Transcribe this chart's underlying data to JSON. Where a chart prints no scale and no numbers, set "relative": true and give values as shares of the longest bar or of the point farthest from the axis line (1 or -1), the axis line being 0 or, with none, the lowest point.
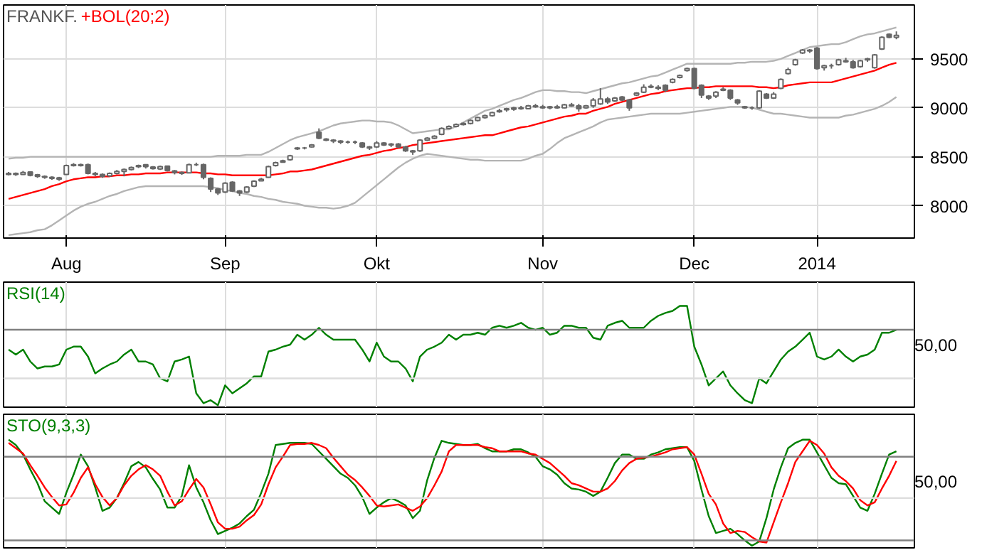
{
  "chart_data": [
    {
      "type": "candlestick",
      "title": "FRANKF.",
      "categories": [
        null,
        null,
        null,
        null,
        null,
        null,
        null,
        null,
        "Aug",
        null,
        null,
        null,
        null,
        null,
        null,
        null,
        null,
        null,
        null,
        null,
        null,
        null,
        null,
        null,
        null,
        null,
        null,
        null,
        null,
        null,
        "Sep",
        null,
        null,
        null,
        null,
        null,
        null,
        null,
        null,
        null,
        null,
        null,
        null,
        null,
        null,
        null,
        null,
        null,
        null,
        null,
        null,
        "Okt",
        null,
        null,
        null,
        null,
        null,
        null,
        null,
        null,
        null,
        null,
        null,
        null,
        null,
        null,
        null,
        null,
        null,
        null,
        null,
        null,
        null,
        null,
        "Nov",
        null,
        null,
        null,
        null,
        null,
        null,
        null,
        null,
        null,
        null,
        null,
        null,
        null,
        null,
        null,
        null,
        null,
        null,
        null,
        null,
        "Dec",
        null,
        null,
        null,
        null,
        null,
        null,
        null,
        null,
        null,
        null,
        null,
        null,
        null,
        null,
        null,
        null,
        "2014",
        null,
        null,
        null,
        null,
        null,
        null,
        null,
        null,
        null,
        null,
        null
      ],
      "ohlc": [
        [
          8320,
          8345,
          8310,
          8330
        ],
        [
          8330,
          8340,
          8305,
          8320
        ],
        [
          8320,
          8355,
          8315,
          8340
        ],
        [
          8345,
          8350,
          8300,
          8310
        ],
        [
          8315,
          8325,
          8285,
          8300
        ],
        [
          8300,
          8310,
          8275,
          8290
        ],
        [
          8290,
          8300,
          8265,
          8280
        ],
        [
          8285,
          8295,
          8255,
          8270
        ],
        [
          8320,
          8420,
          8315,
          8410
        ],
        [
          8410,
          8435,
          8400,
          8420
        ],
        [
          8420,
          8430,
          8400,
          8410
        ],
        [
          8420,
          8430,
          8320,
          8330
        ],
        [
          8330,
          8345,
          8300,
          8320
        ],
        [
          8320,
          8330,
          8285,
          8300
        ],
        [
          8305,
          8340,
          8295,
          8330
        ],
        [
          8330,
          8365,
          8320,
          8350
        ],
        [
          8350,
          8380,
          8300,
          8370
        ],
        [
          8370,
          8400,
          8360,
          8390
        ],
        [
          8400,
          8420,
          8385,
          8410
        ],
        [
          8420,
          8425,
          8380,
          8400
        ],
        [
          8395,
          8405,
          8370,
          8380
        ],
        [
          8375,
          8410,
          8365,
          8400
        ],
        [
          8405,
          8410,
          8350,
          8360
        ],
        [
          8355,
          8365,
          8320,
          8340
        ],
        [
          8340,
          8350,
          8315,
          8330
        ],
        [
          8335,
          8430,
          8330,
          8420
        ],
        [
          8420,
          8440,
          8405,
          8420
        ],
        [
          8420,
          8430,
          8270,
          8290
        ],
        [
          8280,
          8290,
          8140,
          8170
        ],
        [
          8170,
          8180,
          8110,
          8130
        ],
        [
          8140,
          8240,
          8130,
          8230
        ],
        [
          8240,
          8250,
          8140,
          8150
        ],
        [
          8150,
          8160,
          8100,
          8130
        ],
        [
          8140,
          8200,
          8130,
          8190
        ],
        [
          8200,
          8260,
          8190,
          8250
        ],
        [
          8255,
          8285,
          8250,
          8270
        ],
        [
          8290,
          8410,
          8285,
          8400
        ],
        [
          8410,
          8450,
          8400,
          8440
        ],
        [
          8445,
          8470,
          8440,
          8460
        ],
        [
          8470,
          8520,
          8460,
          8510
        ],
        [
          8580,
          8600,
          8570,
          8590
        ],
        [
          8590,
          8600,
          8575,
          8590
        ],
        [
          8600,
          8630,
          8595,
          8620
        ],
        [
          8750,
          8790,
          8680,
          8690
        ],
        [
          8680,
          8690,
          8660,
          8670
        ],
        [
          8670,
          8680,
          8640,
          8660
        ],
        [
          8660,
          8670,
          8630,
          8650
        ],
        [
          8650,
          8665,
          8635,
          8650
        ],
        [
          8650,
          8665,
          8630,
          8650
        ],
        [
          8640,
          8650,
          8590,
          8600
        ],
        [
          8600,
          8610,
          8570,
          8590
        ],
        [
          8600,
          8660,
          8590,
          8640
        ],
        [
          8640,
          8650,
          8610,
          8620
        ],
        [
          8620,
          8640,
          8600,
          8630
        ],
        [
          8630,
          8640,
          8590,
          8600
        ],
        [
          8600,
          8610,
          8550,
          8560
        ],
        [
          8560,
          8570,
          8520,
          8550
        ],
        [
          8560,
          8680,
          8550,
          8670
        ],
        [
          8670,
          8700,
          8660,
          8690
        ],
        [
          8690,
          8720,
          8680,
          8710
        ],
        [
          8730,
          8800,
          8720,
          8790
        ],
        [
          8790,
          8820,
          8780,
          8810
        ],
        [
          8810,
          8840,
          8800,
          8830
        ],
        [
          8830,
          8850,
          8820,
          8840
        ],
        [
          8840,
          8880,
          8830,
          8870
        ],
        [
          8870,
          8910,
          8860,
          8900
        ],
        [
          8900,
          8930,
          8890,
          8920
        ],
        [
          8920,
          8960,
          8910,
          8950
        ],
        [
          8960,
          8990,
          8950,
          8970
        ],
        [
          8980,
          9000,
          8960,
          8990
        ],
        [
          8985,
          9010,
          8970,
          9000
        ],
        [
          9000,
          9020,
          8980,
          8990
        ],
        [
          8990,
          9030,
          8985,
          9020
        ],
        [
          9020,
          9040,
          9000,
          9010
        ],
        [
          9010,
          9030,
          8990,
          9000
        ],
        [
          9000,
          9020,
          8985,
          9010
        ],
        [
          9010,
          9030,
          8990,
          9000
        ],
        [
          9000,
          9040,
          8995,
          9030
        ],
        [
          9030,
          9050,
          9010,
          9020
        ],
        [
          9020,
          9040,
          8960,
          8990
        ],
        [
          9000,
          9030,
          8990,
          9020
        ],
        [
          9020,
          9100,
          9000,
          9080
        ],
        [
          9040,
          9200,
          9030,
          9090
        ],
        [
          9090,
          9110,
          9040,
          9060
        ],
        [
          9070,
          9110,
          9060,
          9100
        ],
        [
          9110,
          9120,
          9070,
          9080
        ],
        [
          9080,
          9090,
          8970,
          9000
        ],
        [
          9130,
          9160,
          9120,
          9150
        ],
        [
          9160,
          9240,
          9150,
          9210
        ],
        [
          9220,
          9240,
          9200,
          9210
        ],
        [
          9210,
          9230,
          9180,
          9200
        ],
        [
          9230,
          9240,
          9160,
          9180
        ],
        [
          9260,
          9300,
          9250,
          9290
        ],
        [
          9310,
          9340,
          9300,
          9330
        ],
        [
          9380,
          9410,
          9370,
          9400
        ],
        [
          9400,
          9410,
          9190,
          9200
        ],
        [
          9230,
          9240,
          9100,
          9130
        ],
        [
          9120,
          9130,
          9080,
          9100
        ],
        [
          9120,
          9170,
          9100,
          9160
        ],
        [
          9180,
          9210,
          9170,
          9190
        ],
        [
          9180,
          9190,
          9080,
          9100
        ],
        [
          9080,
          9090,
          9030,
          9050
        ],
        [
          9000,
          9020,
          8990,
          9010
        ],
        [
          9000,
          9015,
          8980,
          9000
        ],
        [
          9000,
          9180,
          8990,
          9170
        ],
        [
          9140,
          9150,
          9090,
          9100
        ],
        [
          9100,
          9160,
          9090,
          9140
        ],
        [
          9200,
          9300,
          9190,
          9290
        ],
        [
          9350,
          9410,
          9340,
          9390
        ],
        [
          9440,
          9500,
          9430,
          9490
        ],
        [
          9560,
          9600,
          9550,
          9590
        ],
        [
          9590,
          9600,
          9560,
          9580
        ],
        [
          9610,
          9620,
          9390,
          9400
        ],
        [
          9410,
          9440,
          9380,
          9430
        ],
        [
          9430,
          9450,
          9400,
          9430
        ],
        [
          9440,
          9500,
          9430,
          9490
        ],
        [
          9480,
          9510,
          9460,
          9470
        ],
        [
          9470,
          9490,
          9400,
          9410
        ],
        [
          9420,
          9490,
          9410,
          9480
        ],
        [
          9490,
          9510,
          9470,
          9500
        ],
        [
          9410,
          9550,
          9400,
          9540
        ],
        [
          9600,
          9730,
          9590,
          9720
        ],
        [
          9750,
          9760,
          9710,
          9720
        ],
        [
          9720,
          9780,
          9700,
          9740
        ]
      ],
      "series": [
        {
          "type": "line",
          "color": "#b4b4b4",
          "values": [
            8480,
            8490,
            8490,
            8500,
            8500,
            8500,
            8500,
            8500,
            8500,
            8500,
            8500,
            8500,
            8500,
            8500,
            8500,
            8500,
            8500,
            8500,
            8500,
            8500,
            8500,
            8500,
            8500,
            8500,
            8500,
            8500,
            8500,
            8500,
            8500,
            8510,
            8510,
            8510,
            8510,
            8520,
            8520,
            8520,
            8550,
            8590,
            8630,
            8670,
            8700,
            8720,
            8740,
            8760,
            8790,
            8820,
            8840,
            8850,
            8860,
            8870,
            8870,
            8860,
            8860,
            8850,
            8820,
            8780,
            8740,
            8750,
            8760,
            8770,
            8780,
            8780,
            8810,
            8850,
            8890,
            8930,
            8970,
            8990,
            9020,
            9050,
            9080,
            9100,
            9130,
            9160,
            9180,
            9180,
            9170,
            9170,
            9160,
            9160,
            9150,
            9170,
            9190,
            9210,
            9230,
            9250,
            9260,
            9280,
            9300,
            9320,
            9330,
            9360,
            9390,
            9420,
            9450,
            9450,
            9450,
            9450,
            9450,
            9450,
            9450,
            9460,
            9460,
            9470,
            9470,
            9470,
            9480,
            9500,
            9530,
            9560,
            9590,
            9620,
            9630,
            9640,
            9650,
            9650,
            9670,
            9700,
            9730,
            9750,
            9760,
            9780,
            9800,
            9820
          ]
        },
        {
          "type": "line",
          "color": "#b4b4b4",
          "values": [
            7700,
            7710,
            7720,
            7730,
            7750,
            7760,
            7800,
            7850,
            7900,
            7950,
            7990,
            8020,
            8040,
            8070,
            8100,
            8120,
            8150,
            8170,
            8190,
            8200,
            8200,
            8200,
            8200,
            8200,
            8200,
            8200,
            8200,
            8200,
            8190,
            8180,
            8160,
            8150,
            8130,
            8120,
            8100,
            8090,
            8070,
            8060,
            8040,
            8030,
            8020,
            8000,
            7990,
            7980,
            7980,
            7970,
            7980,
            8000,
            8030,
            8090,
            8150,
            8210,
            8270,
            8330,
            8390,
            8440,
            8480,
            8510,
            8530,
            8520,
            8510,
            8500,
            8490,
            8480,
            8470,
            8470,
            8460,
            8460,
            8460,
            8460,
            8460,
            8460,
            8480,
            8510,
            8530,
            8580,
            8640,
            8690,
            8720,
            8750,
            8780,
            8810,
            8850,
            8880,
            8890,
            8900,
            8910,
            8920,
            8930,
            8940,
            8940,
            8940,
            8940,
            8940,
            8950,
            8960,
            8970,
            8980,
            8990,
            9000,
            9010,
            9010,
            9010,
            9000,
            8980,
            8960,
            8940,
            8940,
            8930,
            8920,
            8910,
            8900,
            8900,
            8900,
            8900,
            8900,
            8920,
            8930,
            8950,
            8970,
            8990,
            9020,
            9060,
            9110
          ]
        },
        {
          "type": "line",
          "name": "+BOL(20;2)",
          "color": "#ff0000",
          "values": [
            8070,
            8090,
            8110,
            8130,
            8150,
            8170,
            8200,
            8220,
            8250,
            8270,
            8280,
            8290,
            8290,
            8300,
            8300,
            8310,
            8310,
            8320,
            8320,
            8330,
            8330,
            8330,
            8340,
            8340,
            8340,
            8340,
            8340,
            8330,
            8330,
            8320,
            8320,
            8310,
            8310,
            8310,
            8310,
            8310,
            8310,
            8320,
            8330,
            8350,
            8350,
            8360,
            8370,
            8390,
            8410,
            8430,
            8450,
            8470,
            8490,
            8510,
            8520,
            8540,
            8560,
            8570,
            8590,
            8600,
            8620,
            8630,
            8640,
            8650,
            8660,
            8670,
            8680,
            8690,
            8700,
            8710,
            8720,
            8720,
            8740,
            8760,
            8780,
            8800,
            8810,
            8830,
            8850,
            8870,
            8890,
            8910,
            8920,
            8940,
            8940,
            8970,
            8990,
            9010,
            9040,
            9060,
            9080,
            9100,
            9120,
            9140,
            9150,
            9170,
            9180,
            9190,
            9200,
            9200,
            9210,
            9210,
            9220,
            9220,
            9220,
            9220,
            9220,
            9220,
            9210,
            9210,
            9200,
            9210,
            9230,
            9240,
            9250,
            9260,
            9260,
            9260,
            9260,
            9280,
            9300,
            9320,
            9340,
            9360,
            9380,
            9410,
            9440,
            9460
          ]
        }
      ],
      "ylim": [
        7670,
        10050
      ],
      "yticks": [
        8000,
        8500,
        9000,
        9500
      ],
      "grid": true
    },
    {
      "type": "line",
      "relative": true,
      "categories": [
        null,
        null,
        null,
        null,
        null,
        null,
        null,
        null,
        null,
        null,
        null,
        null,
        null,
        null,
        null,
        null,
        null,
        null,
        null,
        null,
        null,
        null,
        null,
        null,
        null,
        null,
        null,
        null,
        null,
        null,
        null,
        null,
        null,
        null,
        null,
        null,
        null,
        null,
        null,
        null,
        null,
        null,
        null,
        null,
        null,
        null,
        null,
        null,
        null,
        null,
        null,
        null,
        null,
        null,
        null,
        null,
        null,
        null,
        null,
        null,
        null,
        null,
        null,
        null,
        null,
        null,
        null,
        null,
        null,
        null,
        null,
        null,
        null,
        null,
        null,
        null,
        null,
        null,
        null,
        null,
        null,
        null,
        null,
        null,
        null,
        null,
        null,
        null,
        null,
        null,
        null,
        null,
        null,
        null,
        null,
        null,
        null,
        null,
        null,
        null,
        null,
        null,
        null,
        null,
        null,
        null,
        null,
        null,
        null,
        null,
        null,
        null,
        null,
        null,
        null,
        null,
        null,
        null,
        null,
        null,
        null,
        null,
        null,
        null
      ],
      "series": [
        {
          "name": "RSI(14)",
          "color": "#008000",
          "values": [
            0.56,
            0.51,
            0.56,
            0.44,
            0.37,
            0.39,
            0.39,
            0.41,
            0.56,
            0.59,
            0.59,
            0.49,
            0.32,
            0.37,
            0.41,
            0.44,
            0.51,
            0.56,
            0.44,
            0.44,
            0.41,
            0.27,
            0.24,
            0.44,
            0.46,
            0.49,
            0.12,
            0.02,
            0.05,
            0,
            0.2,
            0.12,
            0.17,
            0.22,
            0.29,
            0.29,
            0.54,
            0.56,
            0.59,
            0.61,
            0.71,
            0.66,
            0.71,
            0.78,
            0.71,
            0.66,
            0.66,
            0.66,
            0.66,
            0.56,
            0.44,
            0.63,
            0.49,
            0.44,
            0.44,
            0.37,
            0.24,
            0.49,
            0.56,
            0.59,
            0.63,
            0.71,
            0.66,
            0.71,
            0.71,
            0.73,
            0.71,
            0.78,
            0.8,
            0.78,
            0.8,
            0.83,
            0.78,
            0.76,
            0.78,
            0.71,
            0.73,
            0.8,
            0.8,
            0.78,
            0.78,
            0.68,
            0.66,
            0.8,
            0.83,
            0.85,
            0.78,
            0.78,
            0.78,
            0.85,
            0.9,
            0.93,
            0.95,
            1,
            1,
            0.59,
            0.41,
            0.2,
            0.27,
            0.34,
            0.2,
            0.12,
            0.05,
            0.02,
            0.27,
            0.22,
            0.34,
            0.46,
            0.54,
            0.59,
            0.66,
            0.73,
            0.49,
            0.46,
            0.49,
            0.56,
            0.49,
            0.44,
            0.49,
            0.51,
            0.56,
            0.73,
            0.73,
            0.76
          ]
        }
      ],
      "ref_lines": [
        {
          "axis": "y",
          "value": 0.76,
          "color": "#808080"
        },
        {
          "axis": "y",
          "value": 0.27,
          "color": "#dddddd"
        }
      ],
      "annotations": [
        "50,00"
      ],
      "grid": "x",
      "tick_labels": false
    },
    {
      "type": "line",
      "relative": true,
      "categories": [
        null,
        null,
        null,
        null,
        null,
        null,
        null,
        null,
        null,
        null,
        null,
        null,
        null,
        null,
        null,
        null,
        null,
        null,
        null,
        null,
        null,
        null,
        null,
        null,
        null,
        null,
        null,
        null,
        null,
        null,
        null,
        null,
        null,
        null,
        null,
        null,
        null,
        null,
        null,
        null,
        null,
        null,
        null,
        null,
        null,
        null,
        null,
        null,
        null,
        null,
        null,
        null,
        null,
        null,
        null,
        null,
        null,
        null,
        null,
        null,
        null,
        null,
        null,
        null,
        null,
        null,
        null,
        null,
        null,
        null,
        null,
        null,
        null,
        null,
        null,
        null,
        null,
        null,
        null,
        null,
        null,
        null,
        null,
        null,
        null,
        null,
        null,
        null,
        null,
        null,
        null,
        null,
        null,
        null,
        null,
        null,
        null,
        null,
        null,
        null,
        null,
        null,
        null,
        null,
        null,
        null,
        null,
        null,
        null,
        null,
        null,
        null,
        null,
        null,
        null,
        null,
        null,
        null,
        null,
        null,
        null,
        null,
        null,
        null
      ],
      "series": [
        {
          "name": "STO(9,3,3)",
          "color": "#008000",
          "values": [
            1,
            0.95,
            0.86,
            0.72,
            0.59,
            0.42,
            0.36,
            0.3,
            0.5,
            0.67,
            0.86,
            0.75,
            0.55,
            0.33,
            0.36,
            0.45,
            0.59,
            0.75,
            0.79,
            0.74,
            0.63,
            0.53,
            0.36,
            0.36,
            0.47,
            0.76,
            0.55,
            0.41,
            0.24,
            0.11,
            0.14,
            0.17,
            0.21,
            0.28,
            0.34,
            0.5,
            0.68,
            0.95,
            0.96,
            0.97,
            0.97,
            0.97,
            0.96,
            0.89,
            0.82,
            0.75,
            0.68,
            0.64,
            0.57,
            0.46,
            0.3,
            0.36,
            0.41,
            0.45,
            0.42,
            0.38,
            0.26,
            0.33,
            0.62,
            0.83,
            0.99,
            0.97,
            0.96,
            0.95,
            0.95,
            0.96,
            0.92,
            0.89,
            0.89,
            0.89,
            0.91,
            0.91,
            0.88,
            0.84,
            0.75,
            0.72,
            0.67,
            0.59,
            0.54,
            0.53,
            0.51,
            0.47,
            0.51,
            0.64,
            0.78,
            0.86,
            0.86,
            0.82,
            0.82,
            0.86,
            0.88,
            0.91,
            0.92,
            0.93,
            0.93,
            0.8,
            0.53,
            0.28,
            0.12,
            0.14,
            0.16,
            0.11,
            0.05,
            0,
            0.04,
            0.26,
            0.53,
            0.74,
            0.92,
            0.97,
            1,
            1,
            0.88,
            0.76,
            0.64,
            0.59,
            0.58,
            0.47,
            0.36,
            0.33,
            0.49,
            0.68,
            0.86,
            0.89
          ]
        },
        {
          "color": "#ff0000",
          "values": [
            0.97,
            0.92,
            0.87,
            0.76,
            0.66,
            0.55,
            0.46,
            0.38,
            0.39,
            0.5,
            0.64,
            0.74,
            0.58,
            0.46,
            0.38,
            0.45,
            0.57,
            0.66,
            0.72,
            0.76,
            0.72,
            0.66,
            0.51,
            0.38,
            0.42,
            0.53,
            0.63,
            0.55,
            0.39,
            0.22,
            0.16,
            0.16,
            0.18,
            0.24,
            0.29,
            0.39,
            0.58,
            0.74,
            0.84,
            0.95,
            0.96,
            0.96,
            0.97,
            0.95,
            0.92,
            0.83,
            0.75,
            0.67,
            0.62,
            0.55,
            0.47,
            0.38,
            0.37,
            0.38,
            0.39,
            0.36,
            0.33,
            0.37,
            0.45,
            0.57,
            0.7,
            0.89,
            0.95,
            0.95,
            0.95,
            0.95,
            0.93,
            0.92,
            0.89,
            0.89,
            0.89,
            0.89,
            0.87,
            0.86,
            0.82,
            0.78,
            0.72,
            0.66,
            0.59,
            0.57,
            0.54,
            0.51,
            0.51,
            0.54,
            0.61,
            0.71,
            0.78,
            0.82,
            0.83,
            0.84,
            0.86,
            0.88,
            0.91,
            0.92,
            0.93,
            0.86,
            0.68,
            0.49,
            0.39,
            0.21,
            0.12,
            0.14,
            0.13,
            0.08,
            0.04,
            0.03,
            0.22,
            0.41,
            0.59,
            0.79,
            0.89,
            0.99,
            0.95,
            0.87,
            0.74,
            0.66,
            0.61,
            0.54,
            0.43,
            0.38,
            0.41,
            0.54,
            0.66,
            0.8
          ]
        }
      ],
      "ref_lines": [
        {
          "axis": "y",
          "value": 0.84,
          "color": "#808080"
        },
        {
          "axis": "y",
          "value": 0.45,
          "color": "#dddddd"
        },
        {
          "axis": "y",
          "value": 0.05,
          "color": "#808080"
        }
      ],
      "annotations": [
        "50,00"
      ],
      "grid": "x",
      "tick_labels": false
    }
  ]
}
